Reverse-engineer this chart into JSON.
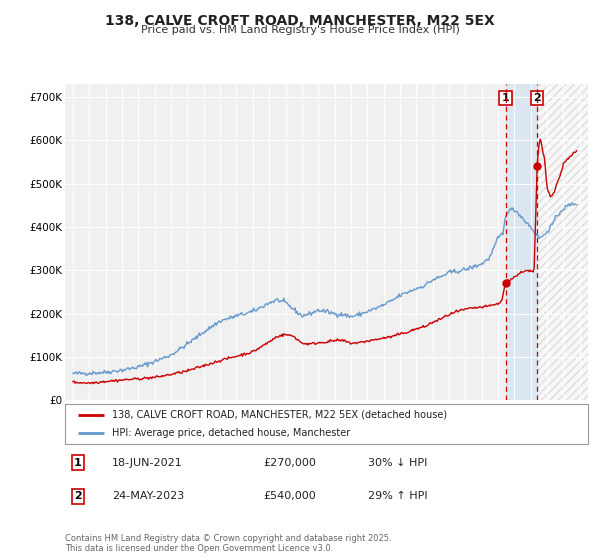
{
  "title": "138, CALVE CROFT ROAD, MANCHESTER, M22 5EX",
  "subtitle": "Price paid vs. HM Land Registry's House Price Index (HPI)",
  "legend_line1": "138, CALVE CROFT ROAD, MANCHESTER, M22 5EX (detached house)",
  "legend_line2": "HPI: Average price, detached house, Manchester",
  "footer": "Contains HM Land Registry data © Crown copyright and database right 2025.\nThis data is licensed under the Open Government Licence v3.0.",
  "transaction1_date": "18-JUN-2021",
  "transaction1_price": "£270,000",
  "transaction1_hpi": "30% ↓ HPI",
  "transaction2_date": "24-MAY-2023",
  "transaction2_price": "£540,000",
  "transaction2_hpi": "29% ↑ HPI",
  "property_color": "#cc0000",
  "hpi_color": "#6699cc",
  "background_color": "#ffffff",
  "plot_bg_color": "#f0f0f0",
  "shade_color": "#dce6f0",
  "hatch_color": "#cccccc",
  "transaction1_x": 2021.46,
  "transaction2_x": 2023.39,
  "transaction1_y": 270000,
  "transaction2_y": 540000,
  "vline1_x": 2021.46,
  "vline2_x": 2023.39,
  "xlim": [
    1994.5,
    2026.5
  ],
  "ylim": [
    0,
    730000
  ],
  "yticks": [
    0,
    100000,
    200000,
    300000,
    400000,
    500000,
    600000,
    700000
  ],
  "ytick_labels": [
    "£0",
    "£100K",
    "£200K",
    "£300K",
    "£400K",
    "£500K",
    "£600K",
    "£700K"
  ],
  "xticks": [
    1995,
    1996,
    1997,
    1998,
    1999,
    2000,
    2001,
    2002,
    2003,
    2004,
    2005,
    2006,
    2007,
    2008,
    2009,
    2010,
    2011,
    2012,
    2013,
    2014,
    2015,
    2016,
    2017,
    2018,
    2019,
    2020,
    2021,
    2022,
    2023,
    2024,
    2025,
    2026
  ]
}
